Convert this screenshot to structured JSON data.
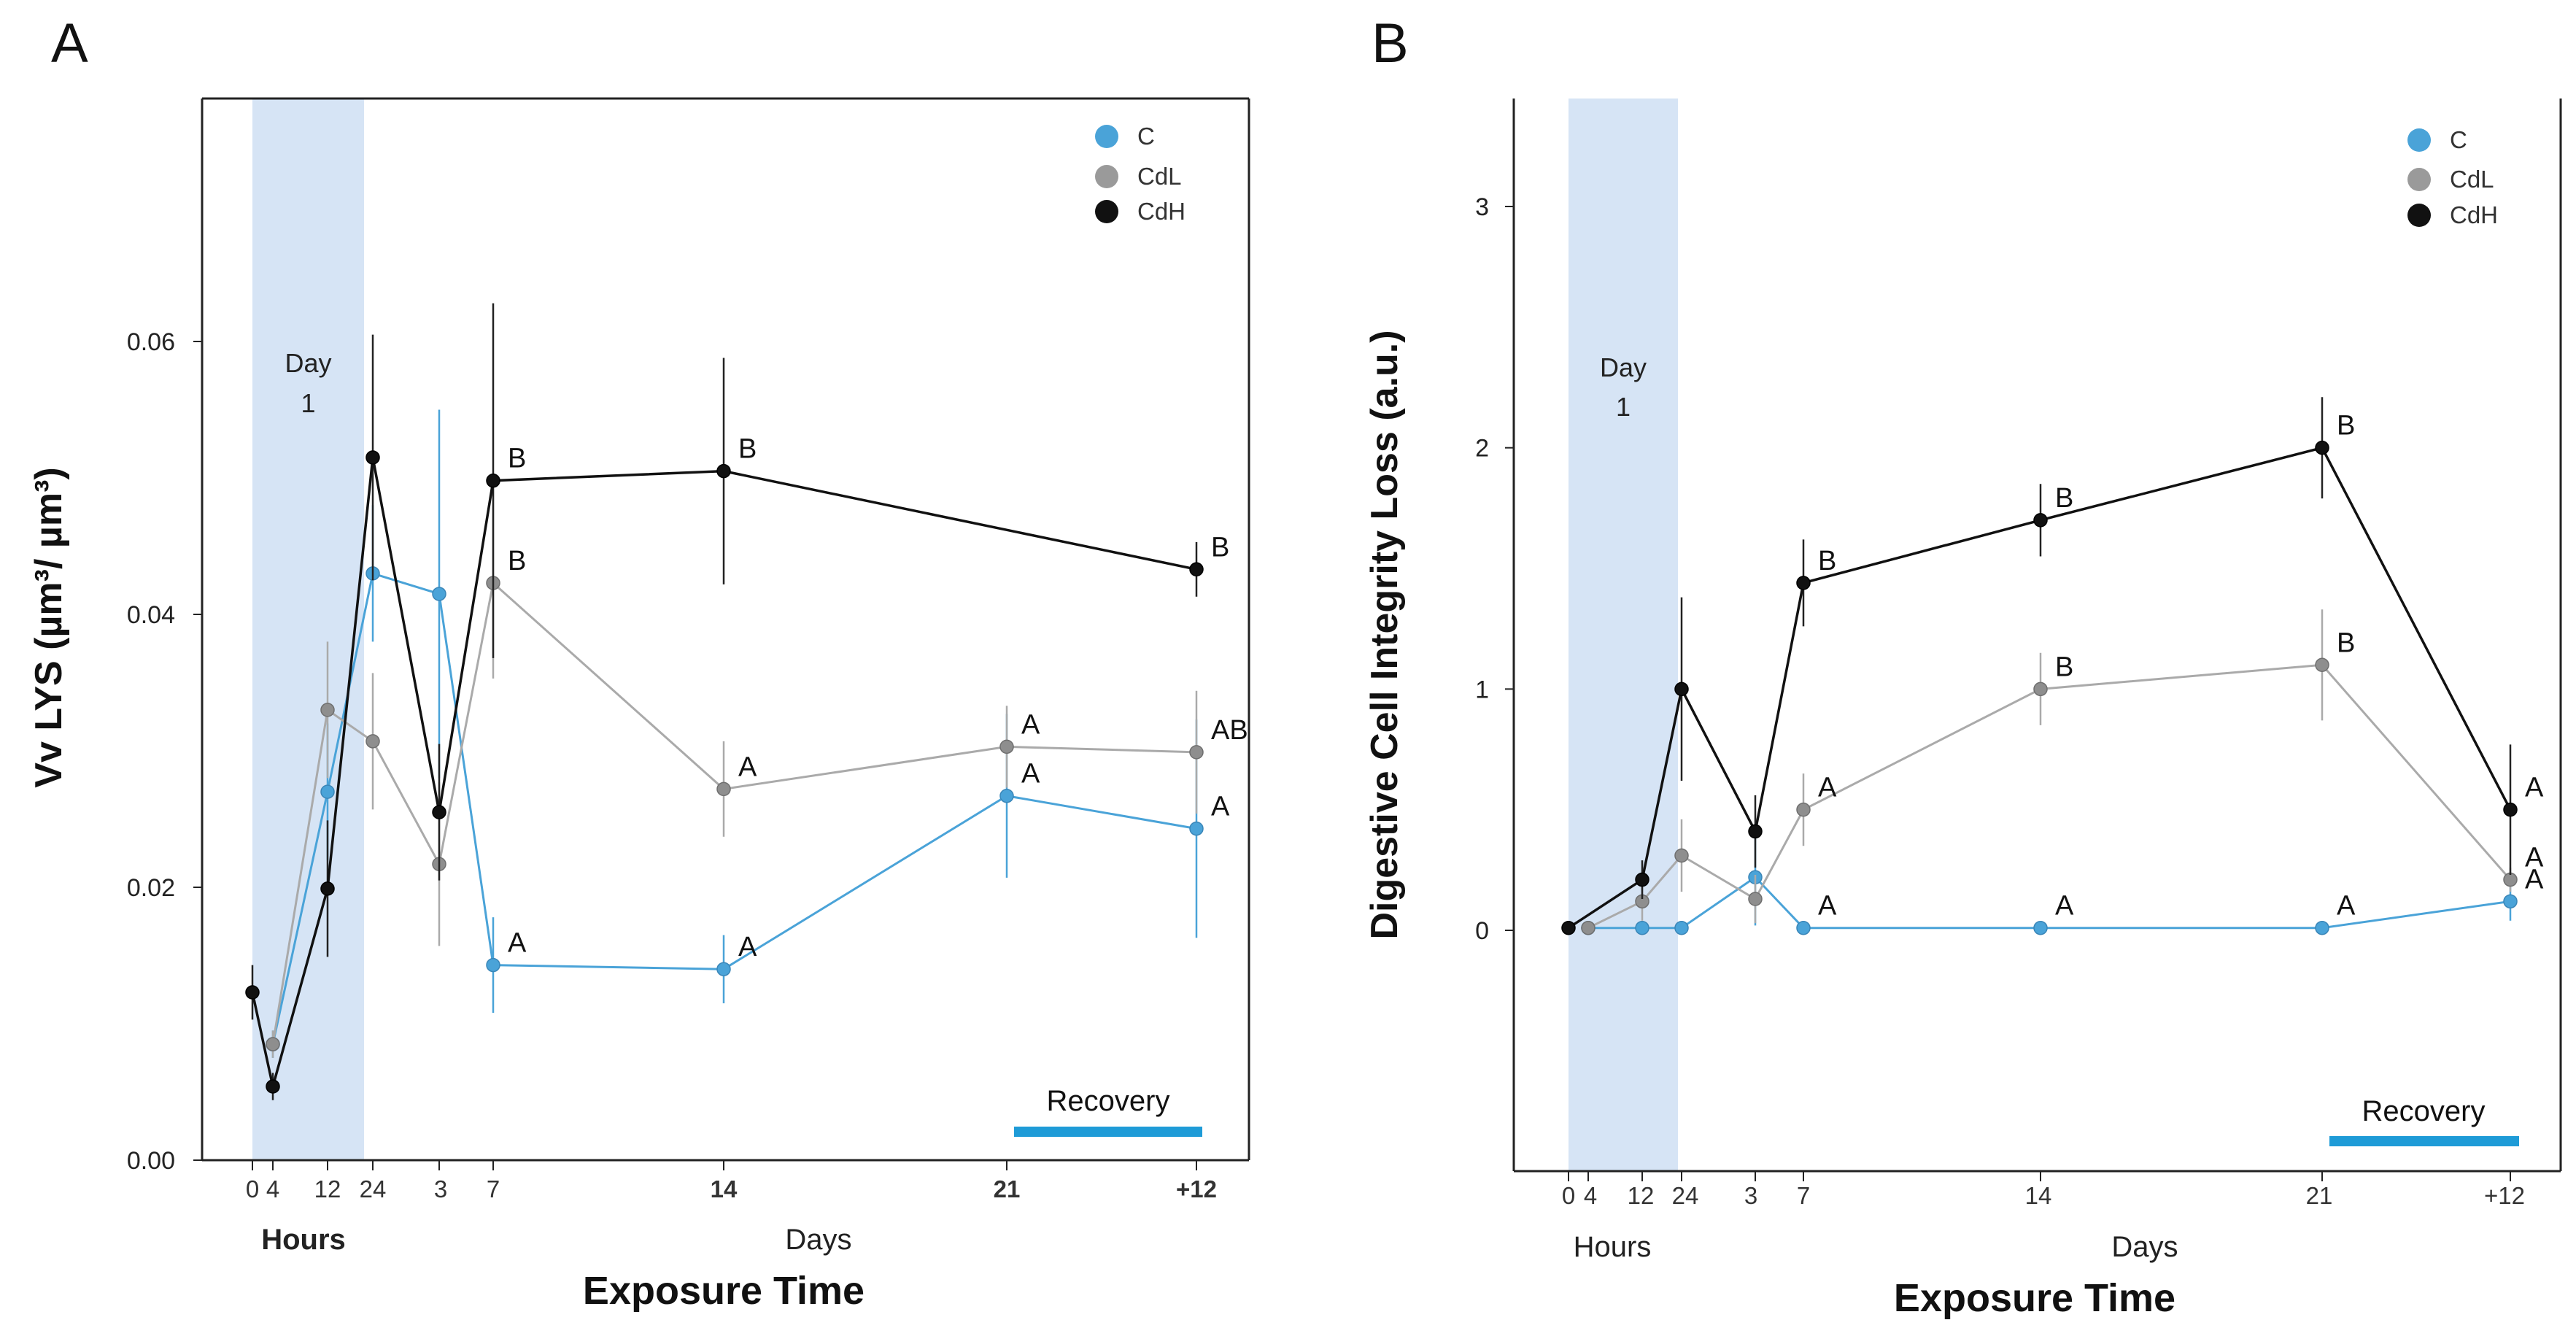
{
  "chart_data": [
    {
      "type": "line",
      "panel": "A",
      "title": "",
      "xlabel": "Exposure Time",
      "ylabel": "Vv LYS (µm³/ µm³)",
      "ylim": [
        0,
        0.08
      ],
      "yticks": [
        0.0,
        0.02,
        0.04,
        0.06
      ],
      "yticklabels": [
        "0.00",
        "0.02",
        "0.04",
        "0.06"
      ],
      "x_categories": [
        "0",
        "4",
        "12",
        "24",
        "3",
        "7",
        "14",
        "21",
        "+12"
      ],
      "x_group_labels": [
        "Hours",
        "Days"
      ],
      "shaded_region": {
        "label_line1": "Day",
        "label_line2": "1",
        "from": "0",
        "to": "24"
      },
      "recovery": {
        "label": "Recovery",
        "from": "21",
        "to": "+12"
      },
      "legend": [
        "C",
        "CdL",
        "CdH"
      ],
      "colors": {
        "C": "#4aa3d8",
        "CdL": "#999999",
        "CdH": "#111111"
      },
      "series": [
        {
          "name": "C",
          "values": [
            null,
            0.0085,
            0.027,
            0.043,
            0.0415,
            0.0143,
            0.014,
            0.0267,
            0.0243
          ],
          "err": [
            0,
            0.001,
            0.005,
            0.005,
            0.0135,
            0.0035,
            0.0025,
            0.006,
            0.008
          ],
          "letters": [
            "",
            "",
            "",
            "",
            "",
            "A",
            "A",
            "A",
            "A"
          ]
        },
        {
          "name": "CdL",
          "values": [
            null,
            0.0085,
            0.033,
            0.0307,
            0.0217,
            0.0423,
            0.0272,
            0.0303,
            0.0299
          ],
          "err": [
            0,
            0.001,
            0.005,
            0.005,
            0.006,
            0.007,
            0.0035,
            0.003,
            0.0045
          ],
          "letters": [
            "",
            "",
            "",
            "",
            "",
            "B",
            "A",
            "A",
            "AB"
          ]
        },
        {
          "name": "CdH",
          "values": [
            0.0123,
            0.0054,
            0.0199,
            0.0515,
            0.0255,
            0.0498,
            0.0505,
            null,
            0.0433
          ],
          "err": [
            0.002,
            0.001,
            0.005,
            0.009,
            0.005,
            0.013,
            0.0083,
            0,
            0.002
          ],
          "letters": [
            "",
            "",
            "",
            "",
            "",
            "B",
            "B",
            "",
            "B"
          ]
        }
      ]
    },
    {
      "type": "line",
      "panel": "B",
      "title": "",
      "xlabel": "Exposure Time",
      "ylabel": "Digestive Cell Integrity Loss (a.u.)",
      "ylim": [
        -1,
        3.5
      ],
      "yticks": [
        0,
        1,
        2,
        3
      ],
      "yticklabels": [
        "0",
        "1",
        "2",
        "3"
      ],
      "x_categories": [
        "0",
        "4",
        "12",
        "24",
        "3",
        "7",
        "14",
        "21",
        "+12"
      ],
      "x_group_labels": [
        "Hours",
        "Days"
      ],
      "shaded_region": {
        "label_line1": "Day",
        "label_line2": "1",
        "from": "0",
        "to": "24"
      },
      "recovery": {
        "label": "Recovery",
        "from": "21",
        "to": "+12"
      },
      "legend": [
        "C",
        "CdL",
        "CdH"
      ],
      "colors": {
        "C": "#4aa3d8",
        "CdL": "#999999",
        "CdH": "#111111"
      },
      "series": [
        {
          "name": "C",
          "values": [
            null,
            0.01,
            0.01,
            0.01,
            0.22,
            0.01,
            0.01,
            0.01,
            0.12
          ],
          "err": [
            0,
            0,
            0,
            0,
            0.2,
            0,
            0,
            0,
            0.08
          ],
          "letters": [
            "",
            "",
            "",
            "",
            "",
            "A",
            "A",
            "A",
            "A"
          ]
        },
        {
          "name": "CdL",
          "values": [
            null,
            0.01,
            0.12,
            0.31,
            0.13,
            0.5,
            1.0,
            1.1,
            0.21
          ],
          "err": [
            0,
            0,
            0.08,
            0.15,
            0.1,
            0.15,
            0.15,
            0.23,
            0.05
          ],
          "letters": [
            "",
            "",
            "",
            "",
            "",
            "A",
            "B",
            "B",
            "A"
          ]
        },
        {
          "name": "CdH",
          "values": [
            0.01,
            null,
            0.21,
            1.0,
            0.41,
            1.44,
            1.7,
            2.0,
            0.5
          ],
          "err": [
            0,
            0,
            0.08,
            0.38,
            0.15,
            0.18,
            0.15,
            0.21,
            0.27
          ],
          "letters": [
            "",
            "",
            "",
            "",
            "",
            "B",
            "B",
            "B",
            "A"
          ]
        }
      ]
    }
  ]
}
